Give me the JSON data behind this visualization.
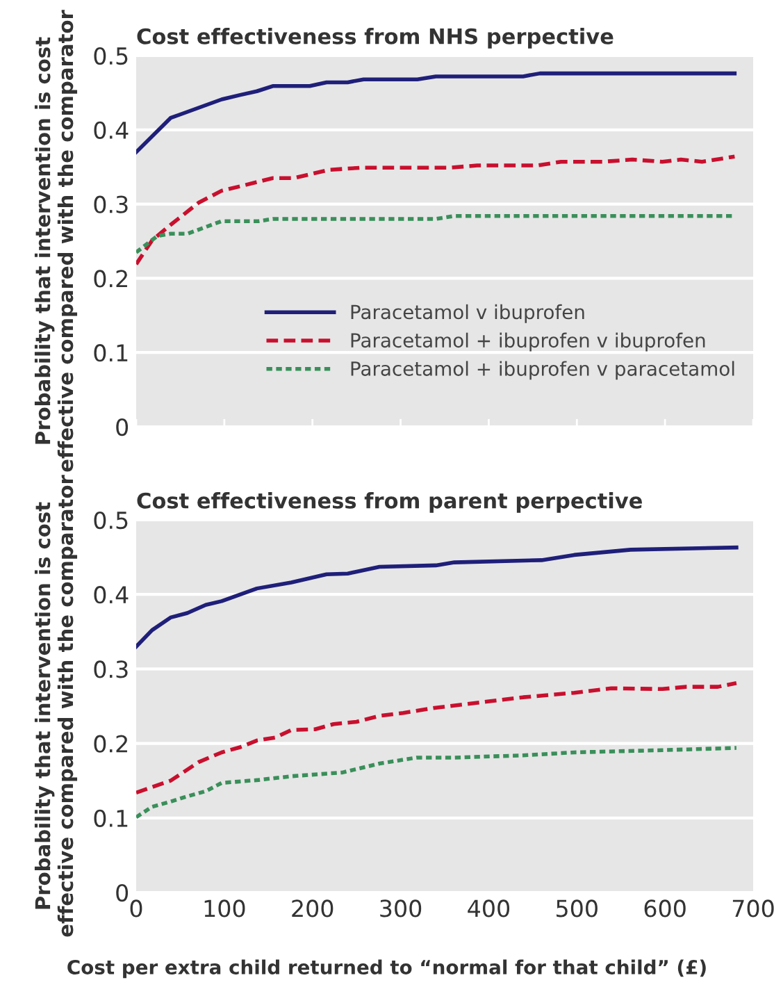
{
  "chart_data": [
    {
      "type": "line",
      "title": "Cost effectiveness from NHS perpective",
      "ylabel": "Probability that intervention is cost\neffective compared with the comparator",
      "xlim": [
        0,
        700
      ],
      "xticks": [
        0,
        100,
        200,
        300,
        400,
        500,
        600,
        700
      ],
      "ylim": [
        0,
        0.5
      ],
      "yticks": [
        0,
        0.1,
        0.2,
        0.3,
        0.4,
        0.5
      ],
      "tick_labels": "y",
      "grid": "y",
      "legend": "bottom right",
      "series": [
        {
          "name": "Paracetamol v ibuprofen",
          "color": "#1f1f7a",
          "line_style": "solid",
          "x": [
            0,
            39,
            97,
            118,
            137,
            155,
            197,
            216,
            240,
            258,
            319,
            340,
            439,
            458,
            679
          ],
          "values": [
            0.37,
            0.416,
            0.441,
            0.447,
            0.452,
            0.459,
            0.459,
            0.464,
            0.464,
            0.468,
            0.468,
            0.472,
            0.472,
            0.476,
            0.476
          ]
        },
        {
          "name": "Paracetamol + ibuprofen v ibuprofen",
          "color": "#c8102e",
          "line_style": "dashed",
          "x": [
            0,
            18,
            39,
            71,
            97,
            118,
            155,
            179,
            218,
            255,
            355,
            387,
            455,
            482,
            529,
            563,
            597,
            618,
            642,
            679
          ],
          "values": [
            0.219,
            0.251,
            0.272,
            0.302,
            0.318,
            0.324,
            0.335,
            0.335,
            0.346,
            0.349,
            0.349,
            0.352,
            0.352,
            0.357,
            0.357,
            0.36,
            0.357,
            0.36,
            0.357,
            0.364
          ]
        },
        {
          "name": "Paracetamol + ibuprofen v paracetamol",
          "color": "#3a8f5a",
          "line_style": "dotted",
          "x": [
            0,
            24,
            39,
            58,
            97,
            139,
            155,
            340,
            361,
            679
          ],
          "values": [
            0.235,
            0.257,
            0.26,
            0.26,
            0.277,
            0.277,
            0.28,
            0.28,
            0.284,
            0.284
          ]
        }
      ]
    },
    {
      "type": "line",
      "title": "Cost effectiveness from parent perpective",
      "ylabel": "Probability that intervention is cost\neffective compared with the comparator",
      "xlabel": "Cost per extra child returned to “normal for that child” (£)",
      "xlim": [
        0,
        700
      ],
      "xticks": [
        0,
        100,
        200,
        300,
        400,
        500,
        600,
        700
      ],
      "ylim": [
        0,
        0.5
      ],
      "yticks": [
        0,
        0.1,
        0.2,
        0.3,
        0.4,
        0.5
      ],
      "grid": "y",
      "series": [
        {
          "color": "#1f1f7a",
          "line_style": "solid",
          "x": [
            0,
            18,
            39,
            58,
            79,
            97,
            137,
            176,
            216,
            240,
            276,
            340,
            361,
            460,
            497,
            561,
            681
          ],
          "values": [
            0.33,
            0.352,
            0.369,
            0.375,
            0.386,
            0.391,
            0.408,
            0.416,
            0.427,
            0.428,
            0.437,
            0.439,
            0.443,
            0.446,
            0.453,
            0.46,
            0.463
          ]
        },
        {
          "color": "#c8102e",
          "line_style": "dashed",
          "x": [
            0,
            39,
            71,
            97,
            118,
            137,
            158,
            176,
            203,
            224,
            250,
            276,
            303,
            340,
            397,
            439,
            497,
            539,
            597,
            624,
            660,
            681
          ],
          "values": [
            0.134,
            0.15,
            0.175,
            0.188,
            0.195,
            0.204,
            0.208,
            0.218,
            0.219,
            0.226,
            0.229,
            0.237,
            0.241,
            0.248,
            0.256,
            0.262,
            0.268,
            0.274,
            0.273,
            0.276,
            0.276,
            0.281
          ]
        },
        {
          "color": "#3a8f5a",
          "line_style": "dotted",
          "x": [
            0,
            18,
            39,
            58,
            79,
            97,
            139,
            176,
            234,
            276,
            318,
            361,
            439,
            497,
            597,
            681
          ],
          "values": [
            0.101,
            0.115,
            0.122,
            0.129,
            0.136,
            0.147,
            0.151,
            0.156,
            0.161,
            0.173,
            0.181,
            0.181,
            0.184,
            0.188,
            0.191,
            0.194
          ]
        }
      ]
    }
  ]
}
